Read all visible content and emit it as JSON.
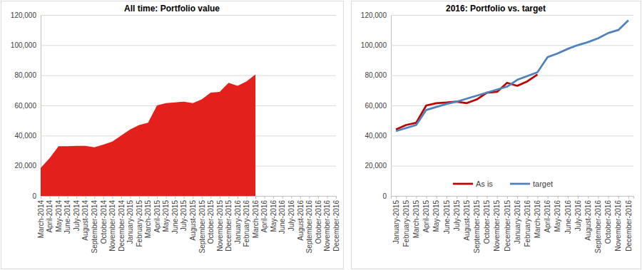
{
  "chart_data": [
    {
      "type": "area",
      "title": "All time: Portfolio value",
      "categories": [
        "March-2014",
        "April-2014",
        "May-2014",
        "June-2014",
        "July-2014",
        "August-2014",
        "September-2014",
        "October-2014",
        "November-2014",
        "December-2014",
        "January-2015",
        "February-2015",
        "March-2015",
        "April-2015",
        "May-2015",
        "June-2015",
        "July-2015",
        "August-2015",
        "September-2015",
        "October-2015",
        "November-2015",
        "December-2015",
        "January-2016",
        "February-2016",
        "March-2016",
        "April-2016",
        "May-2016",
        "June-2016",
        "July-2016",
        "August-2016",
        "September-2016",
        "October-2016",
        "November-2016",
        "December-2016"
      ],
      "values": [
        18500,
        25000,
        33000,
        33000,
        33200,
        33200,
        32300,
        34000,
        36000,
        40000,
        44000,
        47000,
        48500,
        60000,
        61500,
        62000,
        62500,
        61500,
        64000,
        68500,
        69000,
        75000,
        73000,
        76000,
        80500,
        null,
        null,
        null,
        null,
        null,
        null,
        null,
        null,
        null
      ],
      "color": "#e3201b",
      "ylim": [
        0,
        120000
      ],
      "yticks": [
        0,
        {
          "value": 20000,
          "label": "20,000"
        },
        {
          "value": 40000,
          "label": "40,000"
        },
        {
          "value": 60000,
          "label": "60,000"
        },
        {
          "value": 80000,
          "label": "80,000"
        },
        {
          "value": 100000,
          "label": "100,000"
        },
        {
          "value": 120000,
          "label": "120,000"
        }
      ],
      "grid": true
    },
    {
      "type": "line",
      "title": "2016: Portfolio vs. target",
      "categories": [
        "January-2015",
        "February-2015",
        "March-2015",
        "April-2015",
        "May-2015",
        "June-2015",
        "July-2015",
        "August-2015",
        "September-2015",
        "October-2015",
        "November-2015",
        "December-2015",
        "January-2016",
        "February-2016",
        "March-2016",
        "April-2016",
        "May-2016",
        "June-2016",
        "July-2016",
        "August-2016",
        "September-2016",
        "October-2016",
        "November-2016",
        "December-2016"
      ],
      "series": [
        {
          "name": "As is",
          "color": "#c00000",
          "values": [
            44000,
            47000,
            48500,
            60000,
            61500,
            62000,
            62500,
            61500,
            64000,
            68500,
            69000,
            75000,
            73000,
            76000,
            80500,
            null,
            null,
            null,
            null,
            null,
            null,
            null,
            null,
            null
          ]
        },
        {
          "name": "target",
          "color": "#4f81bd",
          "values": [
            43000,
            45000,
            47000,
            57000,
            59000,
            61000,
            62500,
            64500,
            66500,
            68500,
            70500,
            72500,
            77000,
            79500,
            82000,
            92000,
            94500,
            97500,
            100000,
            102000,
            104500,
            108000,
            110000,
            116500
          ]
        }
      ],
      "ylim": [
        0,
        120000
      ],
      "yticks": [
        0,
        {
          "value": 20000,
          "label": "20,000"
        },
        {
          "value": 40000,
          "label": "40,000"
        },
        {
          "value": 60000,
          "label": "60,000"
        },
        {
          "value": 80000,
          "label": "80,000"
        },
        {
          "value": 100000,
          "label": "100,000"
        },
        {
          "value": 120000,
          "label": "120,000"
        }
      ],
      "grid": true,
      "legend": "bottom"
    }
  ]
}
